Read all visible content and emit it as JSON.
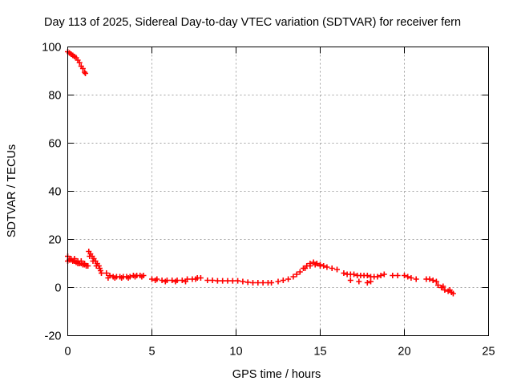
{
  "chart_data": {
    "type": "scatter",
    "title": "Day 113 of 2025, Sidereal Day-to-day VTEC variation (SDTVAR) for receiver fern",
    "xlabel": "GPS time / hours",
    "ylabel": "SDTVAR / TECUs",
    "xlim": [
      0,
      25
    ],
    "ylim": [
      -20,
      100
    ],
    "xticks": [
      0,
      5,
      10,
      15,
      20,
      25
    ],
    "yticks": [
      -20,
      0,
      20,
      40,
      60,
      80,
      100
    ],
    "grid": true,
    "marker": "plus",
    "color": "#ff0000",
    "series": [
      {
        "name": "SDTVAR",
        "x": [
          0.0,
          0.1,
          0.2,
          0.3,
          0.4,
          0.5,
          0.6,
          0.7,
          0.8,
          0.9,
          1.0,
          1.05,
          0.0,
          0.1,
          0.2,
          0.3,
          0.4,
          0.5,
          0.6,
          0.7,
          0.8,
          0.9,
          1.0,
          1.1,
          1.2,
          0.0,
          0.2,
          0.4,
          0.6,
          0.8,
          1.0,
          1.25,
          1.35,
          1.45,
          1.55,
          1.65,
          1.75,
          1.85,
          1.95,
          2.0,
          1.3,
          1.5,
          1.7,
          1.9,
          2.3,
          2.5,
          2.7,
          2.9,
          3.1,
          3.3,
          3.5,
          3.7,
          3.9,
          4.1,
          4.3,
          4.5,
          2.4,
          2.8,
          3.2,
          3.6,
          4.0,
          4.4,
          5.0,
          5.3,
          5.6,
          5.9,
          6.2,
          6.5,
          6.8,
          7.1,
          7.4,
          7.7,
          7.9,
          5.2,
          5.8,
          6.4,
          7.0,
          7.6,
          8.3,
          8.6,
          8.9,
          9.2,
          9.5,
          9.8,
          10.1,
          10.4,
          10.7,
          11.0,
          11.3,
          11.6,
          11.9,
          12.1,
          12.5,
          12.8,
          13.1,
          13.4,
          13.6,
          13.8,
          14.0,
          14.2,
          14.4,
          14.6,
          14.8,
          15.0,
          15.2,
          15.4,
          14.1,
          14.4,
          14.7,
          15.0,
          15.7,
          16.0,
          16.4,
          16.6,
          16.8,
          17.0,
          17.2,
          17.4,
          17.6,
          17.8,
          18.0,
          18.2,
          18.4,
          18.6,
          18.8,
          16.8,
          17.3,
          17.8,
          18.0,
          19.3,
          19.6,
          20.0,
          20.2,
          20.4,
          20.7,
          21.3,
          21.5,
          21.7,
          21.9,
          22.0,
          22.2,
          22.4,
          22.6,
          22.8,
          22.9,
          22.3,
          22.7
        ],
        "y": [
          98,
          97.5,
          97,
          96.5,
          96,
          95.5,
          94.5,
          93.5,
          92,
          91,
          89.5,
          89,
          11,
          11.5,
          11.5,
          11,
          11,
          10.5,
          10,
          10,
          10,
          9.5,
          9.5,
          9,
          9,
          13,
          12,
          12,
          11,
          11,
          10,
          15,
          14,
          13,
          12,
          11,
          10,
          9,
          7,
          6,
          13,
          11,
          9,
          8,
          6,
          5,
          4.5,
          4.5,
          4.5,
          4.5,
          4.5,
          4.5,
          5,
          5,
          5,
          5,
          4,
          4,
          4,
          4,
          4.5,
          4.5,
          3.5,
          3.5,
          3,
          3,
          3,
          3,
          3,
          3.5,
          3.5,
          4,
          4,
          3,
          2.5,
          2.5,
          2.5,
          3.5,
          3,
          3,
          2.8,
          2.8,
          2.8,
          2.8,
          2.8,
          2.5,
          2.2,
          2,
          2,
          2,
          2,
          2,
          2.5,
          3,
          3.5,
          4.5,
          5.5,
          6.5,
          8,
          9,
          10,
          10.5,
          10,
          9.5,
          9,
          8.5,
          8,
          9,
          9.5,
          9,
          8,
          7.5,
          6,
          5.5,
          5.5,
          5.5,
          5,
          5,
          5,
          5,
          4.5,
          4.5,
          4.5,
          5,
          5.5,
          3,
          2.5,
          2,
          2.5,
          5,
          5,
          5,
          4.5,
          4,
          3.5,
          3.5,
          3.5,
          3,
          2.5,
          1,
          0,
          -1,
          -1.5,
          -2,
          -2.5,
          0.5,
          -1
        ]
      }
    ]
  }
}
